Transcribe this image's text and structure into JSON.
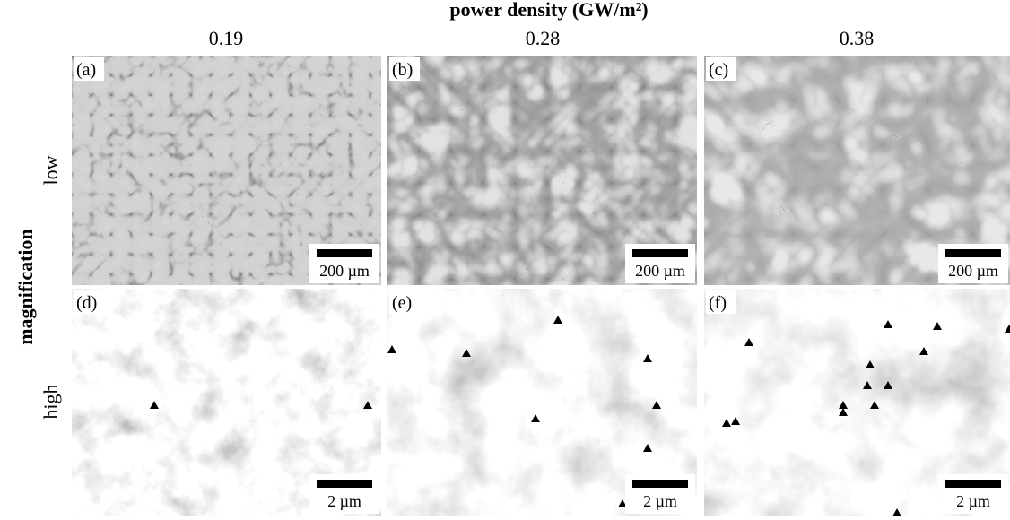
{
  "header": {
    "title": "power density (GW/m²)"
  },
  "columns": [
    "0.19",
    "0.28",
    "0.38"
  ],
  "row_axis_label": "magnification",
  "rows": [
    "low",
    "high"
  ],
  "panels": [
    {
      "label": "(a)",
      "scale_bar": "200 µm"
    },
    {
      "label": "(b)",
      "scale_bar": "200 µm"
    },
    {
      "label": "(c)",
      "scale_bar": "200 µm"
    },
    {
      "label": "(d)",
      "scale_bar": "2 µm"
    },
    {
      "label": "(e)",
      "scale_bar": "2 µm"
    },
    {
      "label": "(f)",
      "scale_bar": "2 µm"
    }
  ]
}
